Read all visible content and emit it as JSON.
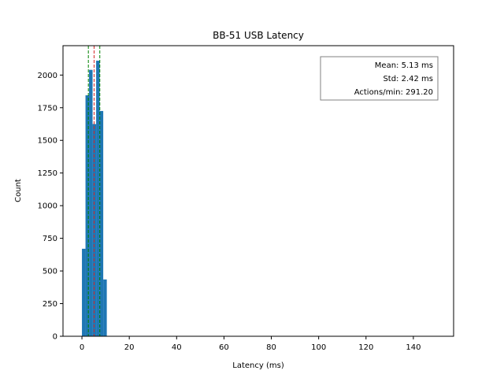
{
  "chart_data": {
    "type": "bar",
    "title": "BB-51 USB Latency",
    "xlabel": "Latency (ms)",
    "ylabel": "Count",
    "xlim": [
      -8,
      157
    ],
    "ylim": [
      0,
      2225
    ],
    "x_ticks": [
      0,
      20,
      40,
      60,
      80,
      100,
      120,
      140
    ],
    "y_ticks": [
      0,
      250,
      500,
      750,
      1000,
      1250,
      1500,
      1750,
      2000
    ],
    "bin_width": 1.5,
    "bins": [
      {
        "x0": 0.0,
        "count": 670
      },
      {
        "x0": 1.5,
        "count": 1845
      },
      {
        "x0": 3.0,
        "count": 2040
      },
      {
        "x0": 4.5,
        "count": 1625
      },
      {
        "x0": 6.0,
        "count": 2110
      },
      {
        "x0": 7.5,
        "count": 1725
      },
      {
        "x0": 9.0,
        "count": 435
      }
    ],
    "bar_color": "#1f77b4",
    "reference_lines": [
      {
        "x": 2.71,
        "color": "#008000",
        "style": "dashed"
      },
      {
        "x": 5.13,
        "color": "#d62728",
        "style": "dashed"
      },
      {
        "x": 7.55,
        "color": "#008000",
        "style": "dashed"
      }
    ],
    "stats": {
      "mean": "Mean: 5.13 ms",
      "std": "Std: 2.42 ms",
      "actions": "Actions/min: 291.20"
    },
    "stats_placement": "top-right"
  }
}
